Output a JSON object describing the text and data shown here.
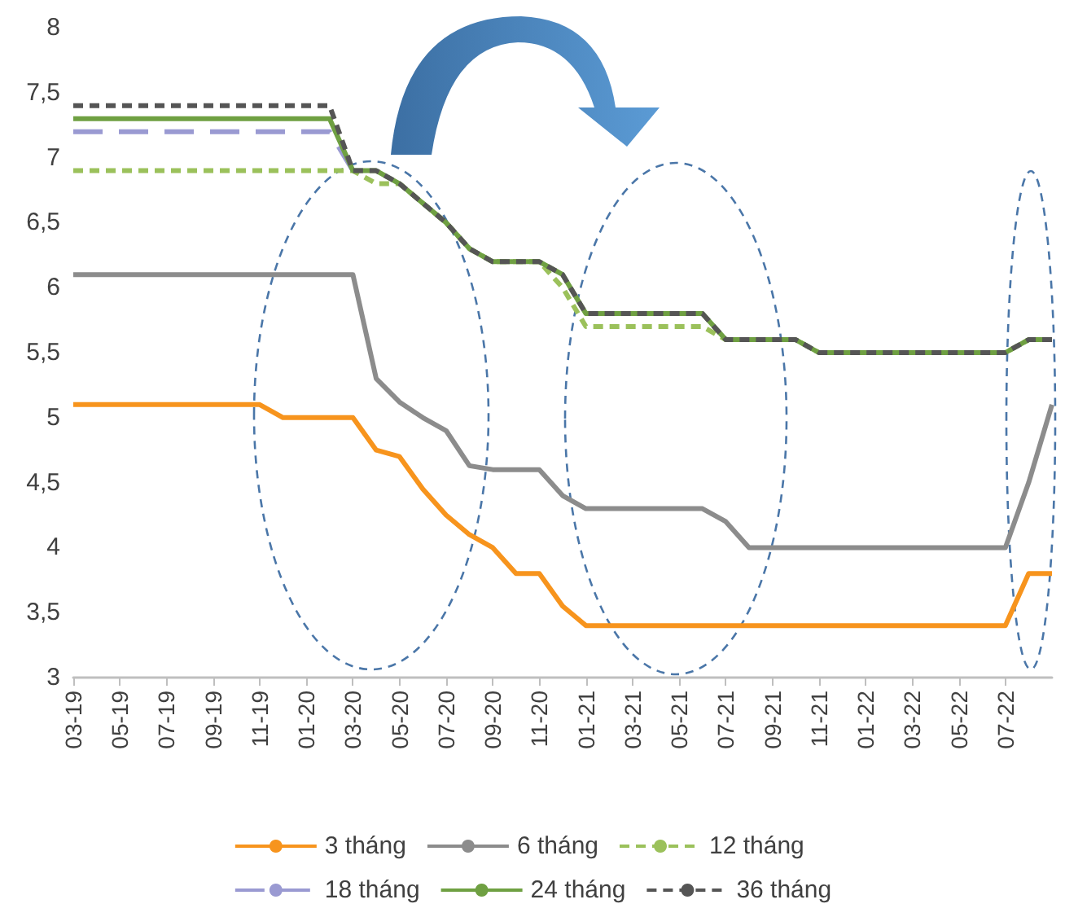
{
  "chart_data": {
    "type": "line",
    "categories": [
      "03-19",
      null,
      "05-19",
      null,
      "07-19",
      null,
      "09-19",
      null,
      "11-19",
      null,
      "01-20",
      null,
      "03-20",
      null,
      "05-20",
      null,
      "07-20",
      null,
      "09-20",
      null,
      "11-20",
      null,
      "01-21",
      null,
      "03-21",
      null,
      "05-21",
      null,
      "07-21",
      null,
      "09-21",
      null,
      "11-21",
      null,
      "01-22",
      null,
      "03-22",
      null,
      "05-22",
      null,
      "07-22",
      null,
      null
    ],
    "ylim": [
      3,
      8
    ],
    "yticks": [
      3,
      {
        "value": 3.5,
        "label": "3,5"
      },
      4,
      {
        "value": 4.5,
        "label": "4,5"
      },
      5,
      {
        "value": 5.5,
        "label": "5,5"
      },
      6,
      {
        "value": 6.5,
        "label": "6,5"
      },
      7,
      {
        "value": 7.5,
        "label": "7,5"
      },
      8
    ],
    "grid": false,
    "legend": "bottom",
    "marker": "none",
    "series": [
      {
        "name": "3 tháng",
        "color": "#f7941d",
        "line_style": "solid",
        "values": [
          5.1,
          5.1,
          5.1,
          5.1,
          5.1,
          5.1,
          5.1,
          5.1,
          5.1,
          5.0,
          5.0,
          5.0,
          5.0,
          4.75,
          4.7,
          4.45,
          4.25,
          4.1,
          4.0,
          3.8,
          3.8,
          3.55,
          3.4,
          3.4,
          3.4,
          3.4,
          3.4,
          3.4,
          3.4,
          3.4,
          3.4,
          3.4,
          3.4,
          3.4,
          3.4,
          3.4,
          3.4,
          3.4,
          3.4,
          3.4,
          3.4,
          3.8,
          3.8
        ]
      },
      {
        "name": "6 tháng",
        "color": "#8c8c8c",
        "line_style": "solid",
        "values": [
          6.1,
          6.1,
          6.1,
          6.1,
          6.1,
          6.1,
          6.1,
          6.1,
          6.1,
          6.1,
          6.1,
          6.1,
          6.1,
          5.3,
          5.12,
          5.0,
          4.9,
          4.63,
          4.6,
          4.6,
          4.6,
          4.4,
          4.3,
          4.3,
          4.3,
          4.3,
          4.3,
          4.3,
          4.2,
          4.0,
          4.0,
          4.0,
          4.0,
          4.0,
          4.0,
          4.0,
          4.0,
          4.0,
          4.0,
          4.0,
          4.0,
          4.5,
          5.1
        ]
      },
      {
        "name": "12 tháng",
        "color": "#9bc15b",
        "line_style": "dashed",
        "values": [
          6.9,
          6.9,
          6.9,
          6.9,
          6.9,
          6.9,
          6.9,
          6.9,
          6.9,
          6.9,
          6.9,
          6.9,
          6.9,
          6.8,
          6.8,
          6.65,
          6.5,
          6.3,
          6.2,
          6.2,
          6.2,
          6.0,
          5.7,
          5.7,
          5.7,
          5.7,
          5.7,
          5.7,
          5.6,
          5.6,
          5.6,
          5.6,
          5.5,
          5.5,
          5.5,
          5.5,
          5.5,
          5.5,
          5.5,
          5.5,
          5.5,
          5.6,
          5.6
        ]
      },
      {
        "name": "18 tháng",
        "color": "#9a9ad2",
        "line_style": "longdash",
        "values": [
          7.2,
          7.2,
          7.2,
          7.2,
          7.2,
          7.2,
          7.2,
          7.2,
          7.2,
          7.2,
          7.2,
          7.2,
          6.9,
          null,
          null,
          null,
          null,
          null,
          null,
          null,
          null,
          null,
          null,
          null,
          null,
          null,
          null,
          null,
          null,
          null,
          null,
          null,
          null,
          null,
          null,
          null,
          null,
          null,
          null,
          null,
          null,
          null,
          null
        ]
      },
      {
        "name": "24 tháng",
        "color": "#6fa042",
        "line_style": "solid",
        "values": [
          7.3,
          7.3,
          7.3,
          7.3,
          7.3,
          7.3,
          7.3,
          7.3,
          7.3,
          7.3,
          7.3,
          7.3,
          6.9,
          6.9,
          6.8,
          6.65,
          6.5,
          6.3,
          6.2,
          6.2,
          6.2,
          6.1,
          5.8,
          5.8,
          5.8,
          5.8,
          5.8,
          5.8,
          5.6,
          5.6,
          5.6,
          5.6,
          5.5,
          5.5,
          5.5,
          5.5,
          5.5,
          5.5,
          5.5,
          5.5,
          5.5,
          5.6,
          5.6
        ]
      },
      {
        "name": "36 tháng",
        "color": "#555555",
        "line_style": "dashed",
        "values": [
          7.4,
          7.4,
          7.4,
          7.4,
          7.4,
          7.4,
          7.4,
          7.4,
          7.4,
          7.4,
          7.4,
          7.4,
          6.9,
          6.9,
          6.8,
          6.65,
          6.5,
          6.3,
          6.2,
          6.2,
          6.2,
          6.1,
          5.8,
          5.8,
          5.8,
          5.8,
          5.8,
          5.8,
          5.6,
          5.6,
          5.6,
          5.6,
          5.5,
          5.5,
          5.5,
          5.5,
          5.5,
          5.5,
          5.5,
          5.5,
          5.5,
          5.6,
          5.6
        ]
      }
    ]
  }
}
